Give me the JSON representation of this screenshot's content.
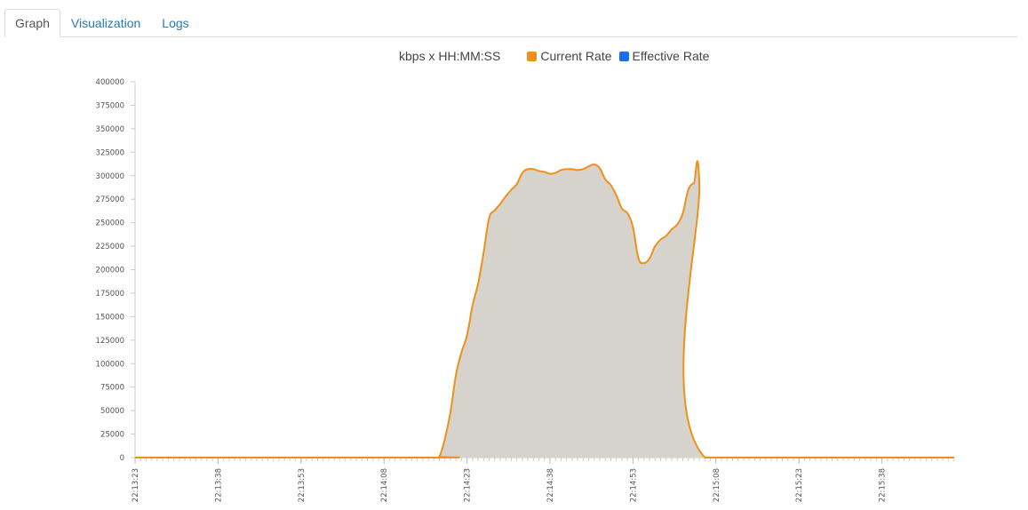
{
  "tabs": [
    {
      "label": "Graph",
      "active": true
    },
    {
      "label": "Visualization",
      "active": false
    },
    {
      "label": "Logs",
      "active": false
    }
  ],
  "chart_data": {
    "type": "area",
    "title": "kbps x HH:MM:SS",
    "legend": [
      {
        "name": "Current Rate",
        "color": "#f0901a"
      },
      {
        "name": "Effective Rate",
        "color": "#1a6ef0"
      }
    ],
    "ylim": [
      0,
      400000
    ],
    "y_ticks": [
      "0",
      "25000",
      "50000",
      "75000",
      "100000",
      "125000",
      "150000",
      "175000",
      "200000",
      "225000",
      "250000",
      "275000",
      "300000",
      "325000",
      "350000",
      "375000",
      "400000"
    ],
    "x_ticks": [
      "22:13:23",
      "22:13:38",
      "22:13:53",
      "22:14:08",
      "22:14:23",
      "22:14:38",
      "22:14:53",
      "22:15:08",
      "22:15:23",
      "22:15:38"
    ],
    "x_range_seconds": [
      0,
      148
    ],
    "fill_color": "#d6d3cd",
    "series": [
      {
        "name": "Current Rate",
        "points": [
          [
            0,
            0
          ],
          [
            54,
            0
          ],
          [
            55,
            1000
          ],
          [
            56,
            20000
          ],
          [
            57,
            48000
          ],
          [
            58,
            88000
          ],
          [
            59,
            112000
          ],
          [
            60,
            130000
          ],
          [
            61,
            162000
          ],
          [
            62,
            185000
          ],
          [
            63,
            218000
          ],
          [
            64,
            255000
          ],
          [
            65,
            263000
          ],
          [
            66,
            270000
          ],
          [
            67,
            278000
          ],
          [
            68,
            285000
          ],
          [
            69,
            291000
          ],
          [
            70,
            303000
          ],
          [
            71,
            307000
          ],
          [
            72,
            307000
          ],
          [
            73,
            305000
          ],
          [
            74,
            304000
          ],
          [
            75,
            302000
          ],
          [
            76,
            303000
          ],
          [
            77,
            306000
          ],
          [
            78,
            307000
          ],
          [
            79,
            307000
          ],
          [
            80,
            306000
          ],
          [
            81,
            307000
          ],
          [
            82,
            310000
          ],
          [
            83,
            312000
          ],
          [
            84,
            308000
          ],
          [
            85,
            296000
          ],
          [
            86,
            290000
          ],
          [
            87,
            279000
          ],
          [
            88,
            265000
          ],
          [
            89,
            260000
          ],
          [
            90,
            245000
          ],
          [
            91,
            212000
          ],
          [
            92,
            207000
          ],
          [
            93,
            212000
          ],
          [
            94,
            225000
          ],
          [
            95,
            232000
          ],
          [
            96,
            236000
          ],
          [
            97,
            243000
          ],
          [
            98,
            248000
          ],
          [
            99,
            260000
          ],
          [
            100,
            285000
          ],
          [
            101,
            292000
          ],
          [
            102,
            292000
          ],
          [
            103,
            0
          ],
          [
            148,
            0
          ]
        ]
      },
      {
        "name": "Effective Rate",
        "points": []
      }
    ]
  }
}
